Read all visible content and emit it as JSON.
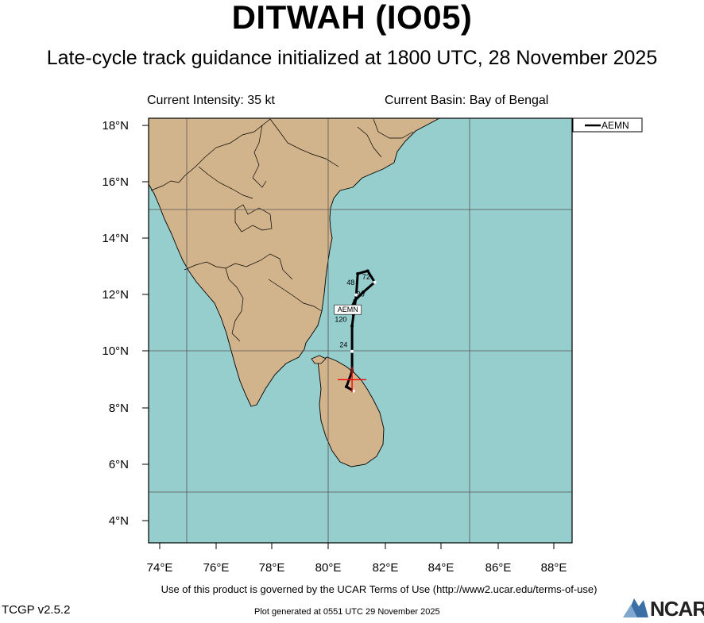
{
  "title": "DITWAH (IO05)",
  "subtitle": "Late-cycle track guidance initialized at 1800 UTC, 28 November 2025",
  "info": {
    "intensity": "Current Intensity: 35 kt",
    "basin": "Current Basin: Bay of Bengal"
  },
  "legend": {
    "label": "AEMN"
  },
  "axes": {
    "lon_ticks": [
      "74°E",
      "76°E",
      "78°E",
      "80°E",
      "82°E",
      "84°E",
      "86°E",
      "88°E"
    ],
    "lat_ticks": [
      "18°N",
      "16°N",
      "14°N",
      "12°N",
      "10°N",
      "8°N",
      "6°N",
      "4°N"
    ]
  },
  "track": {
    "model": "AEMN",
    "label_positions": [
      "24",
      "48",
      "72",
      "96",
      "120"
    ],
    "points": [
      {
        "lon": 80.85,
        "lat": 8.6
      },
      {
        "lon": 80.6,
        "lat": 8.75
      },
      {
        "lon": 80.8,
        "lat": 9.3
      },
      {
        "lon": 80.8,
        "lat": 10.0
      },
      {
        "lon": 80.8,
        "lat": 10.9
      },
      {
        "lon": 80.85,
        "lat": 11.3
      },
      {
        "lon": 80.95,
        "lat": 12.0
      },
      {
        "lon": 81.0,
        "lat": 12.75
      },
      {
        "lon": 81.35,
        "lat": 12.85
      },
      {
        "lon": 81.6,
        "lat": 12.45
      },
      {
        "lon": 81.2,
        "lat": 12.1
      },
      {
        "lon": 80.9,
        "lat": 11.8
      },
      {
        "lon": 80.7,
        "lat": 11.4
      }
    ]
  },
  "current_position": {
    "lon": 80.8,
    "lat": 9.0
  },
  "colors": {
    "ocean": "#96cdcd",
    "land": "#d2b48c",
    "track": "#000000",
    "marker": "#ff0000",
    "grid": "#555555"
  },
  "footer": {
    "terms": "Use of this product is governed by the UCAR Terms of Use (http://www2.ucar.edu/terms-of-use)",
    "version": "TCGP v2.5.2",
    "generated": "Plot generated at 0551 UTC   29 November 2025",
    "logo": "NCAR"
  }
}
